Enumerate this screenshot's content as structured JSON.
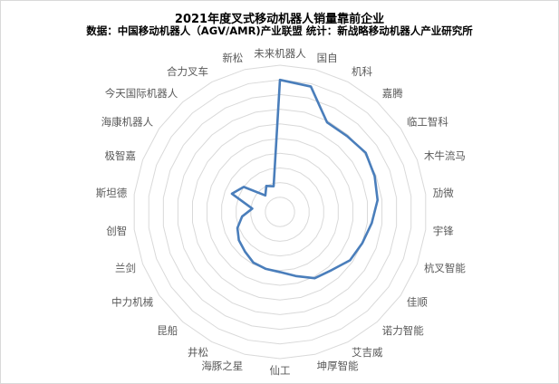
{
  "chart_data": {
    "type": "radar",
    "title": "2021年度叉式移动机器人销量靠前企业",
    "subtitle": "数据：中国移动机器人（AGV/AMR)产业联盟   统计：新战略移动机器人产业研究所",
    "categories": [
      "未来机器人",
      "国自",
      "机科",
      "嘉腾",
      "临工智科",
      "木牛流马",
      "劢微",
      "宇锋",
      "杭叉智能",
      "佳顺",
      "诺力智能",
      "艾吉威",
      "坤厚智能",
      "仙工",
      "海豚之星",
      "井松",
      "昆船",
      "中力机械",
      "兰剑",
      "创智",
      "斯坦德",
      "极智嘉",
      "海康机器人",
      "今天国际机器人",
      "合力叉车",
      "新松"
    ],
    "values": [
      9.0,
      8.8,
      6.9,
      6.9,
      7.1,
      6.9,
      6.7,
      6.3,
      6.0,
      5.8,
      5.3,
      5.1,
      4.5,
      4.1,
      4.0,
      3.9,
      3.6,
      3.4,
      3.1,
      2.6,
      1.9,
      3.5,
      3.0,
      1.5,
      2.0,
      1.8
    ],
    "rlim": [
      0,
      10
    ],
    "grid": true,
    "legend": "none",
    "series_color": "#4a7ebb",
    "grid_color": "#d9d9d9"
  }
}
